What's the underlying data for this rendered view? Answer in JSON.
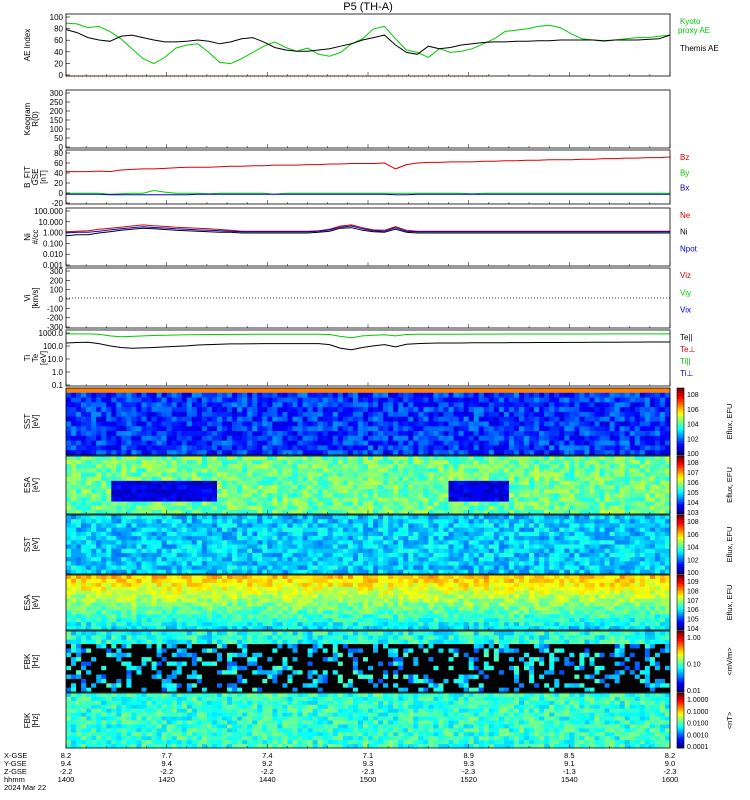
{
  "title": "P5 (TH-A)",
  "chart_data": [
    {
      "id": "ae",
      "type": "line",
      "ylabel": "AE Index",
      "yticks": [
        "100",
        "80",
        "60",
        "40",
        "20",
        "0"
      ],
      "ylim": [
        0,
        100
      ],
      "series": [
        {
          "name": "Kyoto",
          "label_line2": "proxy AE",
          "color": "#00cc00",
          "values": [
            85,
            84,
            78,
            80,
            72,
            60,
            44,
            28,
            20,
            30,
            45,
            50,
            52,
            38,
            22,
            20,
            28,
            38,
            48,
            55,
            46,
            40,
            45,
            35,
            32,
            38,
            52,
            60,
            76,
            80,
            60,
            42,
            38,
            30,
            44,
            38,
            40,
            44,
            52,
            60,
            72,
            74,
            76,
            80,
            82,
            78,
            68,
            60,
            58,
            56,
            58,
            60,
            62,
            62,
            64,
            66
          ]
        },
        {
          "name": "Themis AE",
          "color": "#000000",
          "values": [
            75,
            70,
            62,
            58,
            56,
            64,
            66,
            62,
            58,
            55,
            55,
            56,
            58,
            56,
            52,
            55,
            60,
            62,
            55,
            46,
            42,
            40,
            40,
            42,
            44,
            48,
            52,
            58,
            62,
            66,
            50,
            38,
            35,
            48,
            44,
            46,
            50,
            52,
            54,
            55,
            55,
            56,
            56,
            57,
            57,
            58,
            58,
            58,
            58,
            57,
            58,
            58,
            58,
            59,
            60,
            66
          ]
        }
      ]
    },
    {
      "id": "keogram",
      "type": "line",
      "ylabel": "Keogram",
      "ylabel2": "R(0)",
      "yticks": [
        "300",
        "250",
        "200",
        "150",
        "100",
        "50",
        "0"
      ],
      "ylim": [
        0,
        300
      ],
      "series": []
    },
    {
      "id": "bfield",
      "type": "line",
      "ylabel": "B_FIT",
      "ylabel2": "GSE",
      "ylabel3": "[nT]",
      "yticks": [
        "80",
        "60",
        "40",
        "20",
        "0",
        "-20"
      ],
      "ylim": [
        -20,
        80
      ],
      "series": [
        {
          "name": "Bz",
          "color": "#dd0000",
          "values": [
            40,
            40,
            40,
            41,
            40,
            43,
            44,
            45,
            45,
            46,
            47,
            48,
            48,
            48,
            49,
            50,
            50,
            51,
            51,
            52,
            52,
            52,
            53,
            53,
            54,
            54,
            55,
            55,
            55,
            56,
            45,
            53,
            56,
            57,
            57,
            58,
            58,
            58,
            59,
            59,
            60,
            60,
            61,
            61,
            62,
            62,
            62,
            63,
            63,
            64,
            64,
            65,
            65,
            66,
            66,
            67
          ]
        },
        {
          "name": "By",
          "color": "#00cc00",
          "values": [
            0,
            0,
            0,
            0,
            -2,
            -1,
            0,
            0,
            5,
            2,
            0,
            0,
            0,
            -1,
            0,
            0,
            0,
            0,
            0,
            -2,
            0,
            0,
            0,
            0,
            0,
            0,
            0,
            0,
            0,
            0,
            0,
            0,
            0,
            0,
            0,
            0,
            0,
            -1,
            0,
            0,
            0,
            0,
            0,
            0,
            0,
            0,
            0,
            0,
            0,
            0,
            0,
            0,
            0,
            0,
            0,
            0
          ]
        },
        {
          "name": "Bx",
          "color": "#0000cc",
          "values": [
            -2,
            -2,
            -2,
            -2,
            -3,
            -3,
            -3,
            -3,
            -3,
            -3,
            -3,
            -3,
            -2,
            -2,
            -2,
            -2,
            -2,
            -2,
            -2,
            -2,
            -2,
            -2,
            -2,
            -2,
            -2,
            -2,
            -2,
            -2,
            -2,
            -2,
            -3,
            -3,
            -2,
            -2,
            -2,
            -2,
            -2,
            -2,
            -2,
            -2,
            -2,
            -2,
            -2,
            -2,
            -2,
            -2,
            -2,
            -2,
            -2,
            -2,
            -2,
            -2,
            -2,
            -2,
            -2,
            -2
          ]
        }
      ]
    },
    {
      "id": "density",
      "type": "line",
      "ylabel": "Ni",
      "ylabel2": "#/cc",
      "yscale": "log",
      "yticks": [
        "100.000",
        "10.000",
        "1.000",
        "0.100",
        "0.010",
        "0.001"
      ],
      "ylim": [
        0.001,
        100
      ],
      "series": [
        {
          "name": "Ne",
          "color": "#dd0000",
          "values": [
            0.9,
            1.0,
            1.1,
            1.5,
            1.8,
            2.2,
            2.8,
            3.5,
            3.0,
            2.6,
            2.2,
            2.0,
            1.8,
            1.6,
            1.4,
            1.2,
            1.0,
            1.0,
            1.0,
            1.0,
            1.0,
            1.0,
            1.0,
            1.1,
            1.5,
            2.8,
            3.5,
            2.0,
            1.3,
            1.2,
            2.5,
            1.2,
            1.0,
            1.0,
            1.0,
            1.0,
            1.0,
            1.0,
            1.0,
            1.0,
            1.0,
            1.0,
            1.0,
            1.0,
            1.0,
            1.0,
            1.0,
            1.0,
            1.0,
            1.0,
            1.0,
            1.0,
            1.0,
            1.0,
            1.0,
            1.0
          ]
        },
        {
          "name": "Ni",
          "color": "#000000",
          "values": [
            0.4,
            0.5,
            0.5,
            0.7,
            0.9,
            1.2,
            1.5,
            1.8,
            1.6,
            1.4,
            1.2,
            1.1,
            1.0,
            0.9,
            0.8,
            0.8,
            0.7,
            0.7,
            0.7,
            0.7,
            0.7,
            0.7,
            0.7,
            0.8,
            1.0,
            1.8,
            2.0,
            1.2,
            0.9,
            0.8,
            1.5,
            0.8,
            0.7,
            0.7,
            0.7,
            0.7,
            0.7,
            0.7,
            0.7,
            0.7,
            0.7,
            0.7,
            0.7,
            0.7,
            0.7,
            0.7,
            0.7,
            0.7,
            0.7,
            0.7,
            0.7,
            0.7,
            0.7,
            0.7,
            0.7,
            0.7
          ]
        },
        {
          "name": "Npot",
          "color": "#0000cc",
          "values": [
            0.7,
            0.8,
            0.8,
            1.0,
            1.3,
            1.6,
            2.0,
            2.4,
            2.1,
            1.9,
            1.6,
            1.5,
            1.3,
            1.2,
            1.1,
            1.0,
            0.9,
            0.9,
            0.9,
            0.9,
            0.9,
            0.9,
            0.9,
            1.0,
            1.3,
            2.2,
            2.8,
            1.6,
            1.1,
            1.0,
            2.0,
            1.0,
            0.9,
            0.9,
            0.9,
            0.9,
            0.9,
            0.9,
            0.9,
            0.9,
            0.9,
            0.9,
            0.9,
            0.9,
            0.9,
            0.9,
            0.9,
            0.9,
            0.9,
            0.9,
            0.9,
            0.9,
            0.9,
            0.9,
            0.9,
            0.9
          ]
        }
      ]
    },
    {
      "id": "velocity",
      "type": "line",
      "ylabel": "Vi",
      "ylabel2": "[km/s]",
      "yticks": [
        "300",
        "200",
        "100",
        "0",
        "-100",
        "-200",
        "-300"
      ],
      "ylim": [
        -300,
        300
      ],
      "series": [
        {
          "name": "Viz",
          "color": "#dd0000",
          "values": []
        },
        {
          "name": "Viy",
          "color": "#00cc00",
          "values": []
        },
        {
          "name": "Vix",
          "color": "#0000cc",
          "values": []
        }
      ]
    },
    {
      "id": "temperature",
      "type": "line",
      "ylabel": "Ti",
      "ylabel2": "Te",
      "ylabel3": "[eV]",
      "yscale": "log",
      "yticks": [
        "1000.0",
        "100.0",
        "10.0",
        "1.0",
        "0.1"
      ],
      "ylim": [
        0.1,
        2000
      ],
      "series": [
        {
          "name": "Te||",
          "color": "#000000",
          "values": [
            200,
            220,
            230,
            180,
            120,
            90,
            80,
            85,
            90,
            100,
            110,
            120,
            140,
            150,
            160,
            170,
            170,
            175,
            180,
            180,
            180,
            180,
            180,
            180,
            150,
            80,
            60,
            90,
            120,
            150,
            100,
            160,
            180,
            190,
            200,
            200,
            200,
            210,
            210,
            210,
            210,
            215,
            215,
            220,
            220,
            220,
            225,
            225,
            230,
            230,
            230,
            235,
            235,
            240,
            240,
            240
          ]
        },
        {
          "name": "Te⊥",
          "color": "#dd0000",
          "values": []
        },
        {
          "name": "Ti||",
          "color": "#00cc00",
          "values": [
            1000,
            1000,
            1000,
            950,
            700,
            600,
            650,
            700,
            750,
            800,
            820,
            850,
            880,
            900,
            900,
            920,
            920,
            930,
            930,
            940,
            940,
            940,
            950,
            950,
            900,
            650,
            500,
            700,
            800,
            850,
            700,
            900,
            950,
            950,
            960,
            960,
            960,
            970,
            970,
            970,
            980,
            980,
            980,
            980,
            990,
            990,
            990,
            990,
            990,
            1000,
            1000,
            1000,
            1000,
            1000,
            1000,
            1000
          ]
        },
        {
          "name": "Ti⊥",
          "color": "#0000cc",
          "values": []
        }
      ]
    },
    {
      "id": "sst_ion",
      "type": "heatmap",
      "ylabel": "SST",
      "ylabel2": "[eV]",
      "yticks": [
        "10^6",
        "10^5"
      ],
      "colorbar_ticks": [
        "10^8",
        "10^6",
        "10^4",
        "10^2",
        "10^0"
      ],
      "colorbar_label": "Eflux, EFU"
    },
    {
      "id": "esa_ion",
      "type": "heatmap",
      "ylabel": "ESA",
      "ylabel2": "[eV]",
      "yticks": [
        "10000",
        "1000",
        "100",
        "10"
      ],
      "colorbar_ticks": [
        "10^8",
        "10^7",
        "10^6",
        "10^5",
        "10^4",
        "10^3"
      ],
      "colorbar_label": "Eflux, EFU"
    },
    {
      "id": "sst_elec",
      "type": "heatmap",
      "ylabel": "SST",
      "ylabel2": "[eV]",
      "yticks": [
        "10^5"
      ],
      "colorbar_ticks": [
        "10^8",
        "10^6",
        "10^4",
        "10^2",
        "10^0"
      ],
      "colorbar_label": "Eflux, EFU"
    },
    {
      "id": "esa_elec",
      "type": "heatmap",
      "ylabel": "ESA",
      "ylabel2": "[eV]",
      "yticks": [
        "10000",
        "1000",
        "100",
        "10"
      ],
      "colorbar_ticks": [
        "10^9",
        "10^8",
        "10^7",
        "10^6",
        "10^5",
        "10^4"
      ],
      "colorbar_label": "Eflux, EFU"
    },
    {
      "id": "fbk_e",
      "type": "heatmap",
      "ylabel": "FBK",
      "ylabel2": "[Hz]",
      "yticks": [
        "1000",
        "100",
        "10"
      ],
      "colorbar_ticks": [
        "1.00",
        "0.10",
        "0.01"
      ],
      "colorbar_label": "<mV/m>"
    },
    {
      "id": "fbk_b",
      "type": "heatmap",
      "ylabel": "FBK",
      "ylabel2": "[Hz]",
      "yticks": [
        "1000",
        "100",
        "10"
      ],
      "colorbar_ticks": [
        "1.0000",
        "0.1000",
        "0.0100",
        "0.0010",
        "0.0001"
      ],
      "colorbar_label": "<nT>"
    }
  ],
  "xaxis": {
    "row_labels": [
      "X-GSE",
      "Y-GSE",
      "Z-GSE",
      "hhmm",
      "2024 Mar 22"
    ],
    "ticks": [
      {
        "x": "8.2",
        "y": "9.4",
        "z": "-2.2",
        "t": "1400"
      },
      {
        "x": "7.7",
        "y": "9.4",
        "z": "-2.2",
        "t": "1420"
      },
      {
        "x": "7.4",
        "y": "9.2",
        "z": "-2.2",
        "t": "1440"
      },
      {
        "x": "7.1",
        "y": "9.3",
        "z": "-2.3",
        "t": "1500"
      },
      {
        "x": "8.9",
        "y": "9.3",
        "z": "-2.3",
        "t": "1520"
      },
      {
        "x": "8.5",
        "y": "9.1",
        "z": "-1.3",
        "t": "1540"
      },
      {
        "x": "8.2",
        "y": "9.0",
        "z": "-2.3",
        "t": "1600"
      }
    ]
  }
}
